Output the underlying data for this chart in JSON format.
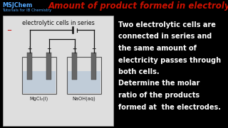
{
  "background_color": "#000000",
  "title_text": "Amount of product formed in electrolysis",
  "title_color": "#cc1100",
  "title_fontsize": 8.5,
  "logo_line1": "MSJChem",
  "logo_line2": "Tutorials for IB Chemistry",
  "logo_color": "#55aaff",
  "diagram_label": "electrolytic cells in series",
  "cell1_label": "MgCl₂(l)",
  "cell2_label": "NaOH(aq)",
  "body_text": [
    "Two electrolytic cells are",
    "connected in series and",
    "the same amount of",
    "electricity passes through",
    "both cells.",
    "Determine the molar",
    "ratio of the products",
    "formed at  the electrodes."
  ],
  "body_fontsize": 7.0,
  "body_color": "#ffffff",
  "electrode_color": "#666666",
  "wire_color": "#111111",
  "diagram_bg": "#dedede",
  "liquid_color": "#c0ccd8",
  "tub_color": "#cccccc"
}
